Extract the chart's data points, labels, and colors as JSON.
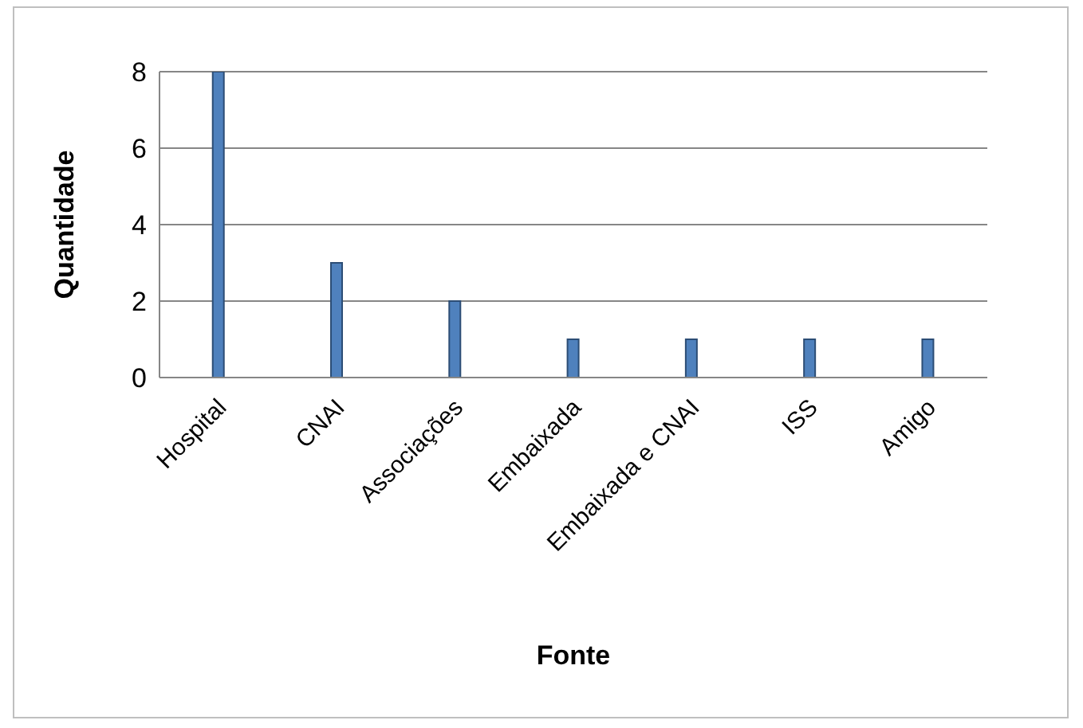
{
  "chart_data": {
    "type": "bar",
    "xlabel": "Fonte",
    "ylabel": "Quantidade",
    "categories": [
      "Hospital",
      "CNAI",
      "Associações",
      "Embaixada",
      "Embaixada e CNAI",
      "ISS",
      "Amigo"
    ],
    "values": [
      8,
      3,
      2,
      1,
      1,
      1,
      1
    ],
    "color": "#4f81bd",
    "ylim": [
      0,
      8
    ],
    "yticks": [
      0,
      2,
      4,
      6,
      8
    ],
    "grid": "y"
  }
}
